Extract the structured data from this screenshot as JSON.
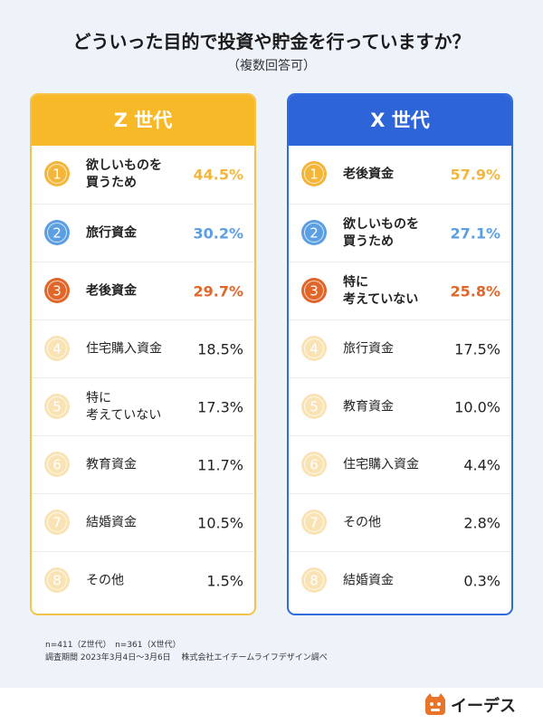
{
  "title": "どういった目的で投資や貯金を行っていますか？",
  "subtitle": "（複数回答可）",
  "colors": {
    "gold": "#f4b63a",
    "silver": "#5b9fe2",
    "bronze": "#e0662a",
    "faded": "#f9e3b4",
    "z_header": "#f8b928",
    "x_header": "#2d64d8"
  },
  "chart_data": {
    "type": "table",
    "panels": [
      {
        "header": "Z 世代",
        "rows": [
          {
            "rank": "1",
            "label": "欲しいものを\n買うため",
            "value": 44.5,
            "pct": "44.5%"
          },
          {
            "rank": "2",
            "label": "旅行資金",
            "value": 30.2,
            "pct": "30.2%"
          },
          {
            "rank": "3",
            "label": "老後資金",
            "value": 29.7,
            "pct": "29.7%"
          },
          {
            "rank": "4",
            "label": "住宅購入資金",
            "value": 18.5,
            "pct": "18.5%"
          },
          {
            "rank": "5",
            "label": "特に\n考えていない",
            "value": 17.3,
            "pct": "17.3%"
          },
          {
            "rank": "6",
            "label": "教育資金",
            "value": 11.7,
            "pct": "11.7%"
          },
          {
            "rank": "7",
            "label": "結婚資金",
            "value": 10.5,
            "pct": "10.5%"
          },
          {
            "rank": "8",
            "label": "その他",
            "value": 1.5,
            "pct": "1.5%"
          }
        ]
      },
      {
        "header": "X 世代",
        "rows": [
          {
            "rank": "1",
            "label": "老後資金",
            "value": 57.9,
            "pct": "57.9%"
          },
          {
            "rank": "2",
            "label": "欲しいものを\n買うため",
            "value": 27.1,
            "pct": "27.1%"
          },
          {
            "rank": "3",
            "label": "特に\n考えていない",
            "value": 25.8,
            "pct": "25.8%"
          },
          {
            "rank": "4",
            "label": "旅行資金",
            "value": 17.5,
            "pct": "17.5%"
          },
          {
            "rank": "5",
            "label": "教育資金",
            "value": 10.0,
            "pct": "10.0%"
          },
          {
            "rank": "6",
            "label": "住宅購入資金",
            "value": 4.4,
            "pct": "4.4%"
          },
          {
            "rank": "7",
            "label": "その他",
            "value": 2.8,
            "pct": "2.8%"
          },
          {
            "rank": "8",
            "label": "結婚資金",
            "value": 0.3,
            "pct": "0.3%"
          }
        ]
      }
    ]
  },
  "notes": {
    "sample": "n=411（Z世代）　n=361（X世代）",
    "period": "調査期間  2023年3月4日～3月6日　 株式会社エイチームライフデザイン調べ"
  },
  "logo": {
    "text": "イーデス",
    "icon": "dog-logo-icon"
  }
}
